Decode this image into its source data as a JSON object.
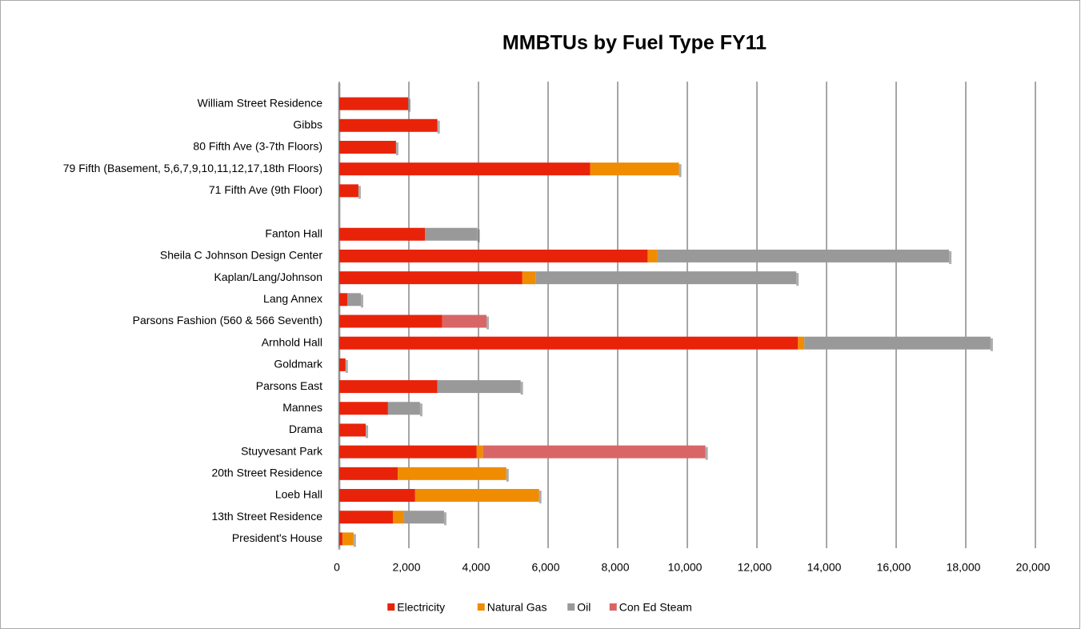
{
  "chart_data": {
    "type": "bar",
    "orientation": "horizontal",
    "stacked": true,
    "title": "MMBTUs by Fuel Type FY11",
    "categories": [
      "William Street Residence",
      "Gibbs",
      "80 Fifth Ave (3-7th Floors)",
      "79 Fifth (Basement, 5,6,7,9,10,11,12,17,18th Floors)",
      "71 Fifth Ave (9th Floor)",
      null,
      "Fanton Hall",
      "Sheila C Johnson Design Center",
      "Kaplan/Lang/Johnson",
      "Lang Annex",
      "Parsons Fashion (560 & 566 Seventh)",
      "Arnhold Hall",
      "Goldmark",
      "Parsons East",
      "Mannes",
      "Drama",
      "Stuyvesant Park",
      "20th Street Residence",
      "Loeb Hall",
      "13th Street Residence",
      "President's House"
    ],
    "series": [
      {
        "name": "Electricity",
        "color": "#e8230a",
        "values": [
          1980,
          2820,
          1630,
          7210,
          550,
          0,
          2460,
          8860,
          5260,
          230,
          2960,
          13180,
          180,
          2820,
          1400,
          760,
          3950,
          1680,
          2180,
          1540,
          90
        ]
      },
      {
        "name": "Natural Gas",
        "color": "#f08c00",
        "values": [
          0,
          0,
          0,
          2550,
          0,
          0,
          0,
          280,
          390,
          0,
          0,
          180,
          0,
          0,
          0,
          0,
          180,
          3120,
          3560,
          320,
          320
        ]
      },
      {
        "name": "Oil",
        "color": "#999999",
        "values": [
          0,
          0,
          0,
          0,
          0,
          0,
          1510,
          8380,
          7480,
          390,
          0,
          5350,
          0,
          2390,
          920,
          0,
          0,
          0,
          0,
          1150,
          0
        ]
      },
      {
        "name": "Con Ed Steam",
        "color": "#d96666",
        "values": [
          0,
          0,
          0,
          0,
          0,
          0,
          0,
          0,
          0,
          0,
          1270,
          0,
          0,
          0,
          0,
          0,
          6390,
          0,
          0,
          0,
          0
        ]
      }
    ],
    "xlim": [
      0,
      20000
    ],
    "xticks": [
      0,
      {
        "value": 2000,
        "label": "2,000"
      },
      {
        "value": 4000,
        "label": "4,000"
      },
      {
        "value": 6000,
        "label": "6,000"
      },
      {
        "value": 8000,
        "label": "8,000"
      },
      {
        "value": 10000,
        "label": "10,000"
      },
      {
        "value": 12000,
        "label": "12,000"
      },
      {
        "value": 14000,
        "label": "14,000"
      },
      {
        "value": 16000,
        "label": "16,000"
      },
      {
        "value": 18000,
        "label": "18,000"
      },
      {
        "value": 20000,
        "label": "20,000"
      }
    ],
    "grid": true,
    "legend": "bottom"
  }
}
